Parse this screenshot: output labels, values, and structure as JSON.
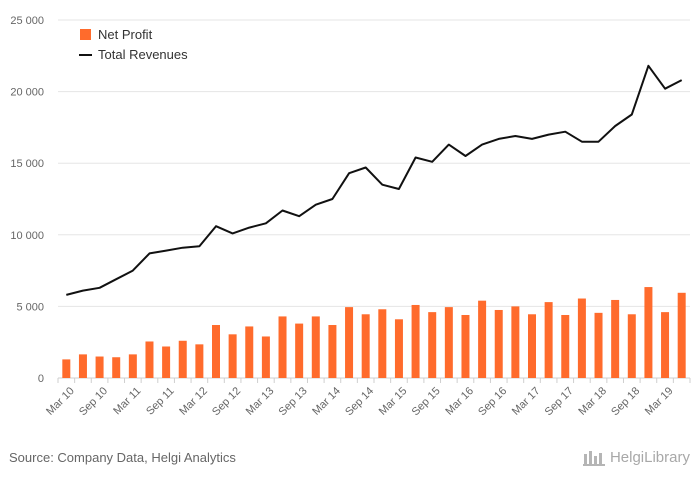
{
  "chart_data": {
    "type": "bar+line",
    "categories": [
      "Mar 10",
      "Jun 10",
      "Sep 10",
      "Dec 10",
      "Mar 11",
      "Jun 11",
      "Sep 11",
      "Dec 11",
      "Mar 12",
      "Jun 12",
      "Sep 12",
      "Dec 12",
      "Mar 13",
      "Jun 13",
      "Sep 13",
      "Dec 13",
      "Mar 14",
      "Jun 14",
      "Sep 14",
      "Dec 14",
      "Mar 15",
      "Jun 15",
      "Sep 15",
      "Dec 15",
      "Mar 16",
      "Jun 16",
      "Sep 16",
      "Dec 16",
      "Mar 17",
      "Jun 17",
      "Sep 17",
      "Dec 17",
      "Mar 18",
      "Jun 18",
      "Sep 18",
      "Dec 18",
      "Mar 19",
      "Jun 19"
    ],
    "tick_labels": [
      "Mar 10",
      "Sep 10",
      "Mar 11",
      "Sep 11",
      "Mar 12",
      "Sep 12",
      "Mar 13",
      "Sep 13",
      "Mar 14",
      "Sep 14",
      "Mar 15",
      "Sep 15",
      "Mar 16",
      "Sep 16",
      "Mar 17",
      "Sep 17",
      "Mar 18",
      "Sep 18",
      "Mar 19"
    ],
    "series": [
      {
        "name": "Net Profit",
        "kind": "bar",
        "color": "#ff6b2c",
        "values": [
          1300,
          1650,
          1500,
          1450,
          1650,
          2550,
          2200,
          2600,
          2350,
          3700,
          3050,
          3600,
          2900,
          4300,
          3800,
          4300,
          3700,
          4950,
          4450,
          4800,
          4100,
          5100,
          4600,
          4950,
          4400,
          5400,
          4750,
          5000,
          4450,
          5300,
          4400,
          5550,
          4550,
          5450,
          4450,
          6350,
          4600,
          5950
        ]
      },
      {
        "name": "Total Revenues",
        "kind": "line",
        "color": "#111111",
        "values": [
          5800,
          6100,
          6300,
          6900,
          7500,
          8700,
          8900,
          9100,
          9200,
          10600,
          10100,
          10500,
          10800,
          11700,
          11300,
          12100,
          12500,
          14300,
          14700,
          13500,
          13200,
          15400,
          15100,
          16300,
          15500,
          16300,
          16700,
          16900,
          16700,
          17000,
          17200,
          16500,
          16500,
          17600,
          18400,
          21800,
          20200,
          20800
        ]
      }
    ],
    "yticks": [
      "0",
      "5 000",
      "10 000",
      "15 000",
      "20 000",
      "25 000"
    ],
    "ylim": [
      0,
      25000
    ],
    "grid": true,
    "legend_position": "top-left"
  },
  "footer": {
    "source": "Source: Company Data, Helgi Analytics",
    "brand": "HelgiLibrary"
  }
}
